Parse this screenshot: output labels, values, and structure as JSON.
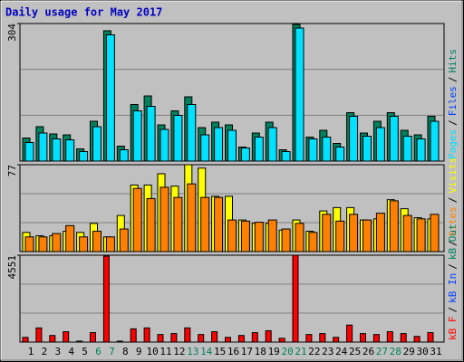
{
  "title": "Daily usage for May 2017",
  "legend_separator": "/",
  "chart_data": [
    {
      "type": "bar",
      "ylim": [
        0,
        304
      ],
      "yticks": [
        304
      ],
      "series": [
        {
          "color": "#00805c",
          "values": [
            51,
            76,
            60,
            58,
            27,
            88,
            288,
            33,
            125,
            144,
            80,
            111,
            142,
            74,
            86,
            80,
            31,
            62,
            86,
            25,
            302,
            53,
            68,
            39,
            107,
            62,
            88,
            107,
            68,
            58,
            99
          ]
        },
        {
          "color": "#00e0ff",
          "values": [
            41,
            62,
            49,
            47,
            21,
            76,
            279,
            25,
            111,
            121,
            70,
            101,
            125,
            58,
            74,
            68,
            29,
            53,
            74,
            21,
            294,
            49,
            53,
            31,
            99,
            55,
            74,
            99,
            55,
            49,
            88
          ]
        }
      ],
      "legend": [
        {
          "text": "Pages",
          "color": "#00e0ff"
        },
        {
          "text": "Files",
          "color": "#0040ff"
        },
        {
          "text": "Hits",
          "color": "#00805c"
        }
      ]
    },
    {
      "type": "bar",
      "ylim": [
        0,
        77
      ],
      "yticks": [
        77
      ],
      "series": [
        {
          "color": "#ffff00",
          "values": [
            17,
            14,
            14,
            18,
            17,
            25,
            13,
            32,
            59,
            59,
            69,
            58,
            77,
            74,
            49,
            49,
            28,
            25,
            25,
            19,
            28,
            18,
            36,
            39,
            39,
            28,
            29,
            46,
            38,
            30,
            29
          ]
        },
        {
          "color": "#ff8000",
          "values": [
            13,
            13,
            16,
            23,
            13,
            18,
            13,
            20,
            56,
            47,
            57,
            48,
            60,
            48,
            48,
            28,
            27,
            26,
            28,
            20,
            25,
            17,
            33,
            27,
            33,
            28,
            34,
            45,
            32,
            29,
            33
          ]
        }
      ],
      "legend": [
        {
          "text": "Sites",
          "color": "#ff8000"
        },
        {
          "text": "Visits",
          "color": "#ffff00"
        }
      ]
    },
    {
      "type": "bar",
      "ylim": [
        0,
        4551
      ],
      "yticks": [
        4551
      ],
      "categories": [
        "1",
        "2",
        "3",
        "4",
        "5",
        "6",
        "7",
        "8",
        "9",
        "10",
        "11",
        "12",
        "13",
        "14",
        "15",
        "16",
        "17",
        "18",
        "19",
        "20",
        "21",
        "22",
        "23",
        "24",
        "25",
        "26",
        "27",
        "28",
        "29",
        "30",
        "31"
      ],
      "category_colors": [
        "#000000",
        "#000000",
        "#000000",
        "#000000",
        "#000000",
        "#00805c",
        "#00805c",
        "#000000",
        "#000000",
        "#000000",
        "#000000",
        "#000000",
        "#00805c",
        "#00805c",
        "#000000",
        "#000000",
        "#000000",
        "#000000",
        "#000000",
        "#00805c",
        "#00805c",
        "#000000",
        "#000000",
        "#000000",
        "#000000",
        "#000000",
        "#00805c",
        "#00805c",
        "#000000",
        "#000000",
        "#000000"
      ],
      "series": [
        {
          "color": "#ff0000",
          "values": [
            247,
            742,
            346,
            544,
            49,
            495,
            4501,
            49,
            693,
            742,
            396,
            445,
            742,
            396,
            544,
            247,
            346,
            495,
            594,
            198,
            4551,
            396,
            445,
            247,
            890,
            445,
            396,
            544,
            445,
            297,
            495
          ]
        }
      ],
      "legend": [
        {
          "text": "kB F",
          "color": "#ff0000"
        },
        {
          "text": "kB In",
          "color": "#0040ff"
        },
        {
          "text": "kB Out",
          "color": "#00805c"
        }
      ]
    }
  ]
}
